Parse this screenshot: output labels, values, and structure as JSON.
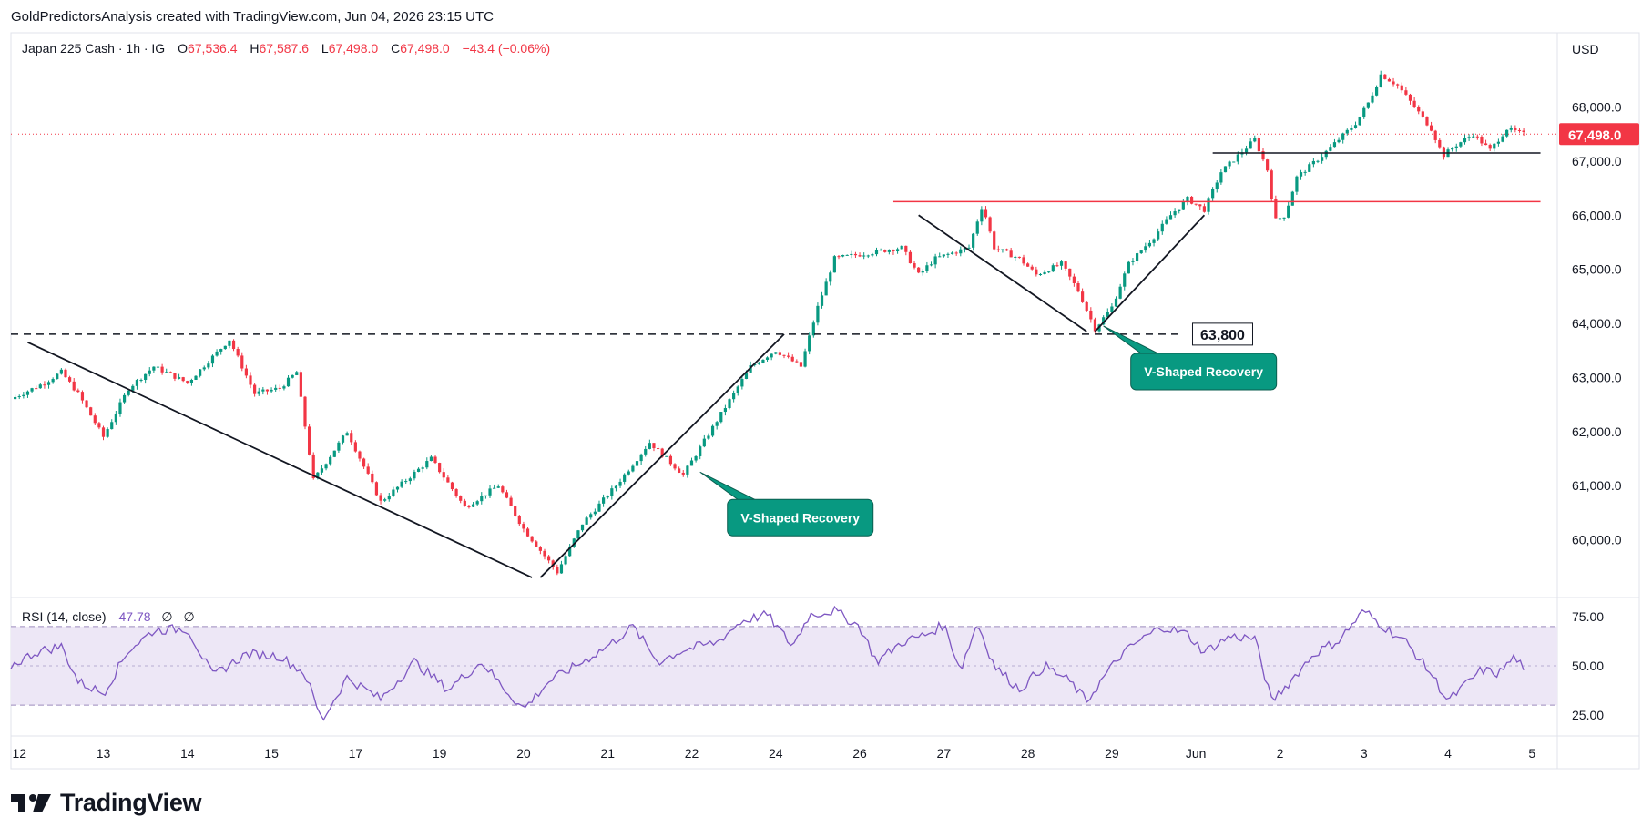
{
  "attribution": "GoldPredictorsAnalysis created with TradingView.com, Jun 04, 2026 23:15 UTC",
  "brand": {
    "name": "TradingView",
    "logo_icon": "tradingview-logo-icon"
  },
  "colors": {
    "up": "#089981",
    "down": "#f23645",
    "rsi_line": "#7e57c2",
    "rsi_band": "#ede7f6",
    "callout": "#089981",
    "resistance": "#f23645",
    "current_price_label": "#f23645"
  },
  "legend": {
    "symbol": "Japan 225 Cash · 1h · IG",
    "open_key": "O",
    "open": "67,536.4",
    "high_key": "H",
    "high": "67,587.6",
    "low_key": "L",
    "low": "67,498.0",
    "close_key": "C",
    "close": "67,498.0",
    "change": "−43.4 (−0.06%)"
  },
  "rsi_legend": {
    "label": "RSI (14, close)",
    "value": "47.78",
    "extra1": "∅",
    "extra2": "∅"
  },
  "currency": "USD",
  "current_price": "67,498.0",
  "chart_data": [
    {
      "type": "candlestick",
      "title": "Japan 225 Cash · 1h · IG",
      "currency": "USD",
      "ylim": [
        59200,
        68800
      ],
      "y_ticks": [
        "68,000.0",
        "67,000.0",
        "66,000.0",
        "65,000.0",
        "64,000.0",
        "63,000.0",
        "62,000.0",
        "61,000.0",
        "60,000.0"
      ],
      "y_tick_values": [
        68000,
        67000,
        66000,
        65000,
        64000,
        63000,
        62000,
        61000,
        60000
      ],
      "x_ticks": [
        "12",
        "13",
        "14",
        "15",
        "17",
        "19",
        "20",
        "21",
        "22",
        "24",
        "26",
        "27",
        "28",
        "29",
        "Jun",
        "2",
        "3",
        "4",
        "5"
      ],
      "x_tick_pos": [
        0.5,
        5.5,
        10.5,
        15.5,
        20.5,
        25.5,
        30.5,
        35.5,
        40.5,
        45.5,
        50.5,
        55.5,
        60.5,
        65.5,
        70.5,
        75.5,
        80.5,
        85.5,
        90.5
      ],
      "price_path": [
        [
          0,
          62600
        ],
        [
          2,
          62900
        ],
        [
          3,
          63100
        ],
        [
          4,
          62700
        ],
        [
          5.5,
          61900
        ],
        [
          7,
          62800
        ],
        [
          8.5,
          63200
        ],
        [
          10.5,
          62900
        ],
        [
          13,
          63700
        ],
        [
          14.5,
          62700
        ],
        [
          16,
          62800
        ],
        [
          17,
          63100
        ],
        [
          18,
          61100
        ],
        [
          20,
          62000
        ],
        [
          22,
          60700
        ],
        [
          25,
          61500
        ],
        [
          27,
          60600
        ],
        [
          29,
          61000
        ],
        [
          30.5,
          60200
        ],
        [
          32.5,
          59400
        ],
        [
          34,
          60300
        ],
        [
          36,
          61000
        ],
        [
          38,
          61800
        ],
        [
          40,
          61200
        ],
        [
          42,
          62200
        ],
        [
          44,
          63200
        ],
        [
          45.5,
          63500
        ],
        [
          47,
          63200
        ],
        [
          48,
          64300
        ],
        [
          49,
          65200
        ],
        [
          51,
          65300
        ],
        [
          53,
          65400
        ],
        [
          54,
          64900
        ],
        [
          55,
          65200
        ],
        [
          57,
          65400
        ],
        [
          57.8,
          66200
        ],
        [
          58.5,
          65400
        ],
        [
          60,
          65200
        ],
        [
          61,
          64900
        ],
        [
          62.5,
          65100
        ],
        [
          63.5,
          64600
        ],
        [
          64.5,
          63900
        ],
        [
          65.5,
          64300
        ],
        [
          66.5,
          65100
        ],
        [
          68,
          65600
        ],
        [
          69,
          66000
        ],
        [
          70,
          66300
        ],
        [
          71,
          66100
        ],
        [
          72,
          66800
        ],
        [
          73,
          67100
        ],
        [
          74,
          67400
        ],
        [
          74.8,
          66800
        ],
        [
          75.2,
          65900
        ],
        [
          75.8,
          66000
        ],
        [
          76.5,
          66700
        ],
        [
          78,
          67100
        ],
        [
          79,
          67400
        ],
        [
          80,
          67700
        ],
        [
          80.8,
          68100
        ],
        [
          81.5,
          68600
        ],
        [
          82.5,
          68400
        ],
        [
          83.5,
          68000
        ],
        [
          84.5,
          67600
        ],
        [
          85.2,
          67100
        ],
        [
          86,
          67300
        ],
        [
          87,
          67500
        ],
        [
          88,
          67200
        ],
        [
          89,
          67600
        ],
        [
          90,
          67498
        ]
      ],
      "annotations": [
        {
          "type": "hline",
          "style": "dashed",
          "value": 63800,
          "label": "63,800"
        },
        {
          "type": "hline",
          "style": "solid",
          "color": "#f23645",
          "value": 66250
        },
        {
          "type": "hline",
          "style": "solid",
          "color": "#131722",
          "value": 67150
        },
        {
          "type": "trendline",
          "from": [
            1,
            63650
          ],
          "to": [
            31,
            59300
          ]
        },
        {
          "type": "trendline",
          "from": [
            31.5,
            59300
          ],
          "to": [
            46,
            63800
          ]
        },
        {
          "type": "trendline",
          "from": [
            54,
            66000
          ],
          "to": [
            64,
            63850
          ]
        },
        {
          "type": "trendline",
          "from": [
            64.5,
            63850
          ],
          "to": [
            71,
            66000
          ]
        },
        {
          "type": "callout",
          "text": "V-Shaped Recovery",
          "anchor": [
            41,
            61250
          ]
        },
        {
          "type": "callout",
          "text": "V-Shaped Recovery",
          "anchor": [
            65,
            63950
          ]
        }
      ]
    },
    {
      "type": "line",
      "title": "RSI (14, close)",
      "ylim": [
        18,
        82
      ],
      "y_ticks": [
        "75.00",
        "50.00",
        "25.00"
      ],
      "y_tick_values": [
        75,
        50,
        25
      ],
      "bands": [
        30,
        50,
        70
      ],
      "rsi_path": [
        [
          0,
          50
        ],
        [
          1.5,
          57
        ],
        [
          3,
          60
        ],
        [
          4,
          42
        ],
        [
          5.5,
          36
        ],
        [
          7,
          58
        ],
        [
          8.5,
          68
        ],
        [
          10.5,
          69
        ],
        [
          12,
          45
        ],
        [
          14,
          56
        ],
        [
          16,
          55
        ],
        [
          17.5,
          46
        ],
        [
          18.5,
          22
        ],
        [
          20,
          44
        ],
        [
          22,
          33
        ],
        [
          24,
          52
        ],
        [
          26,
          38
        ],
        [
          28,
          52
        ],
        [
          29.5,
          37
        ],
        [
          30.5,
          28
        ],
        [
          32,
          42
        ],
        [
          34,
          52
        ],
        [
          35.5,
          60
        ],
        [
          37,
          70
        ],
        [
          38.5,
          52
        ],
        [
          40,
          58
        ],
        [
          42,
          62
        ],
        [
          43.5,
          73
        ],
        [
          45,
          76
        ],
        [
          46.5,
          60
        ],
        [
          47.5,
          76
        ],
        [
          49,
          78
        ],
        [
          50.5,
          70
        ],
        [
          51.5,
          52
        ],
        [
          53,
          62
        ],
        [
          54.5,
          66
        ],
        [
          55.5,
          71
        ],
        [
          56.5,
          48
        ],
        [
          57.5,
          72
        ],
        [
          58.5,
          50
        ],
        [
          60,
          38
        ],
        [
          61.5,
          50
        ],
        [
          63,
          42
        ],
        [
          64,
          32
        ],
        [
          65,
          44
        ],
        [
          66,
          55
        ],
        [
          67,
          62
        ],
        [
          68.5,
          70
        ],
        [
          70,
          66
        ],
        [
          71,
          57
        ],
        [
          72.5,
          65
        ],
        [
          74,
          64
        ],
        [
          75,
          32
        ],
        [
          76,
          41
        ],
        [
          77.5,
          56
        ],
        [
          79,
          63
        ],
        [
          80.5,
          78
        ],
        [
          81.5,
          71
        ],
        [
          83,
          62
        ],
        [
          84.5,
          46
        ],
        [
          85.5,
          32
        ],
        [
          86.5,
          40
        ],
        [
          87.5,
          48
        ],
        [
          88.5,
          46
        ],
        [
          89.5,
          55
        ],
        [
          90,
          47.78
        ]
      ]
    }
  ]
}
